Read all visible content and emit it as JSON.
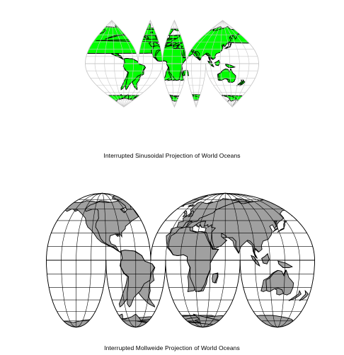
{
  "maps": [
    {
      "caption": "Interrupted Sinusoidal Projection of World Oceans",
      "projection": "interrupted sinusoidal",
      "land_color": "#00ff00",
      "ocean_color": "#ffffff",
      "grid_color": "#c8c8c8",
      "coast_color": "#000000"
    },
    {
      "caption": "Interrupted Mollweide Projection of World Oceans",
      "projection": "interrupted mollweide",
      "land_color": "#a0a0a0",
      "ocean_color": "#ffffff",
      "grid_color": "#000000",
      "coast_color": "#000000"
    }
  ]
}
